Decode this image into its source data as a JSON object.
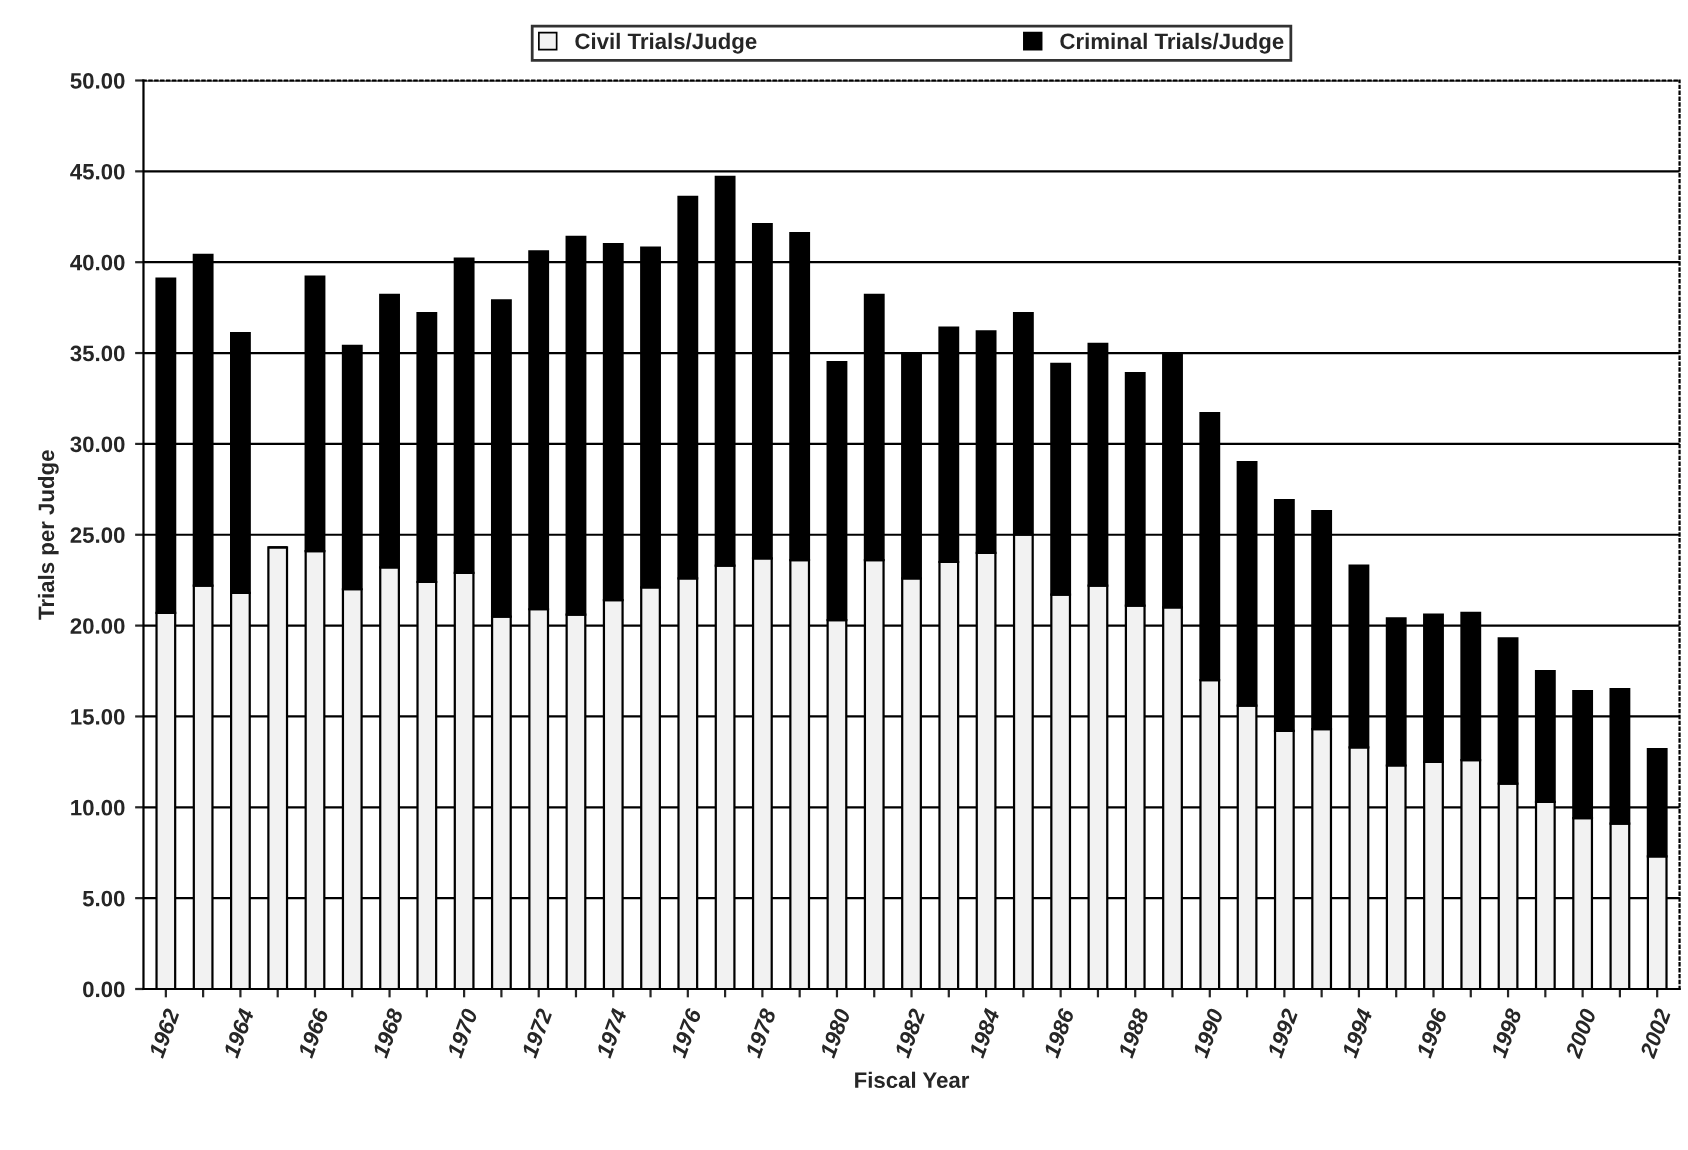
{
  "chart_data": {
    "type": "bar",
    "stacked": true,
    "xlabel": "Fiscal Year",
    "ylabel": "Trials per Judge",
    "categories": [
      "1962",
      null,
      "1964",
      null,
      "1966",
      null,
      "1968",
      null,
      "1970",
      null,
      "1972",
      null,
      "1974",
      null,
      "1976",
      null,
      "1978",
      null,
      "1980",
      null,
      "1982",
      null,
      "1984",
      null,
      "1986",
      null,
      "1988",
      null,
      "1990",
      null,
      "1992",
      null,
      "1994",
      null,
      "1996",
      null,
      "1998",
      null,
      "2000",
      null,
      "2002"
    ],
    "series": [
      {
        "name": "Civil Trials/Judge",
        "color": "#f2f2f2",
        "values": [
          20.7,
          22.2,
          21.8,
          24.3,
          24.1,
          22.0,
          23.2,
          22.4,
          22.9,
          20.5,
          20.9,
          20.6,
          21.4,
          22.1,
          22.6,
          23.3,
          23.7,
          23.6,
          20.3,
          23.6,
          22.6,
          23.5,
          24.0,
          25.0,
          21.7,
          22.2,
          21.1,
          21.0,
          17.0,
          15.6,
          14.2,
          14.3,
          13.3,
          12.3,
          12.5,
          12.6,
          11.3,
          10.3,
          9.4,
          9.1,
          7.3
        ]
      },
      {
        "name": "Criminal Trials/Judge",
        "color": "#000000",
        "values": [
          18.4,
          18.2,
          14.3,
          0,
          15.1,
          13.4,
          15.0,
          14.8,
          17.3,
          17.4,
          19.7,
          20.8,
          19.6,
          18.7,
          21.0,
          21.4,
          18.4,
          18.0,
          14.2,
          14.6,
          12.4,
          12.9,
          12.2,
          12.2,
          12.7,
          13.3,
          12.8,
          14.0,
          14.7,
          13.4,
          12.7,
          12.0,
          10.0,
          8.1,
          8.1,
          8.1,
          8.0,
          7.2,
          7.0,
          7.4,
          5.9
        ]
      }
    ],
    "ylim": [
      0,
      50
    ],
    "yticks": [
      {
        "value": 0,
        "label": "0.00"
      },
      {
        "value": 5,
        "label": "5.00"
      },
      {
        "value": 10,
        "label": "10.00"
      },
      {
        "value": 15,
        "label": "15.00"
      },
      {
        "value": 20,
        "label": "20.00"
      },
      {
        "value": 25,
        "label": "25.00"
      },
      {
        "value": 30,
        "label": "30.00"
      },
      {
        "value": 35,
        "label": "35.00"
      },
      {
        "value": 40,
        "label": "40.00"
      },
      {
        "value": 45,
        "label": "45.00"
      },
      {
        "value": 50,
        "label": "50.00"
      }
    ],
    "grid": "y",
    "legend": "top"
  }
}
